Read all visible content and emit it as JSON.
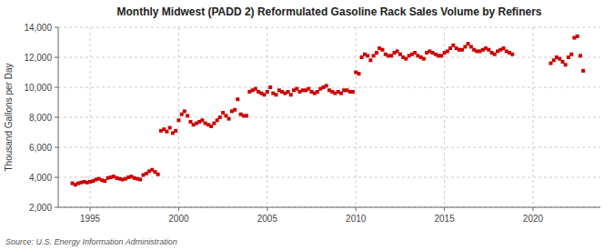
{
  "chart_data": {
    "type": "scatter",
    "title": "Monthly Midwest (PADD 2) Reformulated Gasoline Rack Sales Volume by Refiners",
    "ylabel": "Thousand Gallons per Day",
    "source": "Source: U.S. Energy Information Administration",
    "color": "#cc0000",
    "marker": "square",
    "grid": true,
    "xlim": [
      1993.2,
      2023.8
    ],
    "xticks": [
      1995,
      2000,
      2005,
      2010,
      2015,
      2020
    ],
    "ylim": [
      2000,
      14000
    ],
    "yticks": [
      {
        "value": 2000,
        "label": "2,000"
      },
      {
        "value": 4000,
        "label": "4,000"
      },
      {
        "value": 6000,
        "label": "6,000"
      },
      {
        "value": 8000,
        "label": "8,000"
      },
      {
        "value": 10000,
        "label": "10,000"
      },
      {
        "value": 12000,
        "label": "12,000"
      },
      {
        "value": 14000,
        "label": "14,000"
      }
    ],
    "x": [
      1994.0,
      1994.17,
      1994.33,
      1994.5,
      1994.67,
      1994.83,
      1995.0,
      1995.17,
      1995.33,
      1995.5,
      1995.67,
      1995.83,
      1996.0,
      1996.17,
      1996.33,
      1996.5,
      1996.67,
      1996.83,
      1997.0,
      1997.17,
      1997.33,
      1997.5,
      1997.67,
      1997.83,
      1998.0,
      1998.17,
      1998.33,
      1998.5,
      1998.67,
      1998.83,
      1999.0,
      1999.17,
      1999.33,
      1999.5,
      1999.67,
      1999.83,
      2000.0,
      2000.17,
      2000.33,
      2000.5,
      2000.67,
      2000.83,
      2001.0,
      2001.17,
      2001.33,
      2001.5,
      2001.67,
      2001.83,
      2002.0,
      2002.17,
      2002.33,
      2002.5,
      2002.67,
      2002.83,
      2003.0,
      2003.17,
      2003.33,
      2003.5,
      2003.67,
      2003.83,
      2004.0,
      2004.17,
      2004.33,
      2004.5,
      2004.67,
      2004.83,
      2005.0,
      2005.17,
      2005.33,
      2005.5,
      2005.67,
      2005.83,
      2006.0,
      2006.17,
      2006.33,
      2006.5,
      2006.67,
      2006.83,
      2007.0,
      2007.17,
      2007.33,
      2007.5,
      2007.67,
      2007.83,
      2008.0,
      2008.17,
      2008.33,
      2008.5,
      2008.67,
      2008.83,
      2009.0,
      2009.17,
      2009.33,
      2009.5,
      2009.67,
      2009.83,
      2010.0,
      2010.17,
      2010.33,
      2010.5,
      2010.67,
      2010.83,
      2011.0,
      2011.17,
      2011.33,
      2011.5,
      2011.67,
      2011.83,
      2012.0,
      2012.17,
      2012.33,
      2012.5,
      2012.67,
      2012.83,
      2013.0,
      2013.17,
      2013.33,
      2013.5,
      2013.67,
      2013.83,
      2014.0,
      2014.17,
      2014.33,
      2014.5,
      2014.67,
      2014.83,
      2015.0,
      2015.17,
      2015.33,
      2015.5,
      2015.67,
      2015.83,
      2016.0,
      2016.17,
      2016.33,
      2016.5,
      2016.67,
      2016.83,
      2017.0,
      2017.17,
      2017.33,
      2017.5,
      2017.67,
      2017.83,
      2018.0,
      2018.17,
      2018.33,
      2018.5,
      2018.67,
      2018.83,
      2021.0,
      2021.17,
      2021.33,
      2021.5,
      2021.67,
      2021.83,
      2022.0,
      2022.17,
      2022.33,
      2022.5,
      2022.67,
      2022.83
    ],
    "values": [
      3600,
      3500,
      3600,
      3650,
      3700,
      3650,
      3700,
      3750,
      3850,
      3900,
      3800,
      3750,
      3950,
      4000,
      4050,
      3950,
      3900,
      3850,
      3900,
      4000,
      4050,
      3950,
      3900,
      3850,
      4150,
      4250,
      4400,
      4500,
      4350,
      4200,
      7100,
      7200,
      7050,
      7300,
      6950,
      7100,
      7800,
      8200,
      8400,
      8100,
      7700,
      7500,
      7600,
      7700,
      7800,
      7600,
      7500,
      7400,
      7600,
      7800,
      8000,
      8300,
      8100,
      7900,
      8400,
      8500,
      9200,
      8200,
      8100,
      8100,
      9700,
      9800,
      9900,
      9700,
      9600,
      9500,
      9700,
      10000,
      9600,
      9500,
      9800,
      9700,
      9600,
      9700,
      9500,
      9800,
      9900,
      9700,
      9800,
      9800,
      9900,
      9700,
      9600,
      9700,
      9900,
      10000,
      10100,
      9800,
      9700,
      9600,
      9700,
      9600,
      9800,
      9800,
      9700,
      9700,
      11000,
      10900,
      12000,
      12200,
      12100,
      11800,
      12100,
      12300,
      12600,
      12500,
      12200,
      12100,
      12100,
      12300,
      12400,
      12200,
      12000,
      11900,
      12100,
      12200,
      12300,
      12100,
      12000,
      11900,
      12300,
      12400,
      12300,
      12200,
      12100,
      12100,
      12300,
      12400,
      12600,
      12800,
      12600,
      12500,
      12500,
      12700,
      12900,
      12700,
      12500,
      12400,
      12400,
      12500,
      12600,
      12500,
      12300,
      12200,
      12400,
      12500,
      12600,
      12400,
      12300,
      12200,
      11600,
      11800,
      12000,
      11900,
      11700,
      11500,
      12000,
      12200,
      13300,
      13400,
      12100,
      11100
    ]
  }
}
